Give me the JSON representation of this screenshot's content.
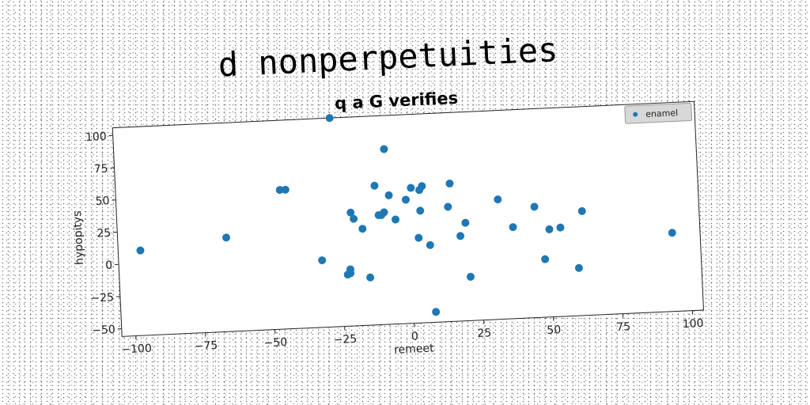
{
  "chart_data": {
    "type": "scatter",
    "title": "d nonperpetuities",
    "subtitle": "q a G verifies",
    "xlabel": "remeet",
    "ylabel": "hypopitys",
    "xlim": [
      -105,
      104
    ],
    "ylim": [
      -56,
      106
    ],
    "xticks": [
      -100,
      -75,
      -50,
      -25,
      0,
      25,
      50,
      75,
      100
    ],
    "yticks": [
      -50,
      -25,
      0,
      25,
      50,
      75,
      100
    ],
    "legend_position": "top-right",
    "grid": false,
    "series": [
      {
        "name": "enamel",
        "color": "#1f77b4",
        "points": [
          [
            -97,
            10
          ],
          [
            -66,
            17
          ],
          [
            -46,
            52
          ],
          [
            -44,
            52
          ],
          [
            -32,
            -4
          ],
          [
            -27,
            106
          ],
          [
            -23,
            -16
          ],
          [
            -22,
            -15
          ],
          [
            -22,
            -12
          ],
          [
            -21,
            32
          ],
          [
            -20,
            27
          ],
          [
            -17,
            19
          ],
          [
            -15,
            -19
          ],
          [
            -12,
            52
          ],
          [
            -11,
            29
          ],
          [
            -10,
            29
          ],
          [
            -9,
            31
          ],
          [
            -8,
            80
          ],
          [
            -7,
            44
          ],
          [
            -5,
            25
          ],
          [
            -1,
            40
          ],
          [
            1,
            49
          ],
          [
            3,
            10
          ],
          [
            4,
            47
          ],
          [
            4,
            31
          ],
          [
            5,
            50
          ],
          [
            7,
            4
          ],
          [
            8,
            -48
          ],
          [
            14,
            33
          ],
          [
            15,
            51
          ],
          [
            18,
            10
          ],
          [
            20,
            20
          ],
          [
            21,
            -22
          ],
          [
            32,
            37
          ],
          [
            37,
            15
          ],
          [
            45,
            30
          ],
          [
            48,
            -11
          ],
          [
            50,
            12
          ],
          [
            54,
            13
          ],
          [
            60,
            -19
          ],
          [
            62,
            25
          ],
          [
            94,
            5
          ]
        ]
      }
    ]
  }
}
